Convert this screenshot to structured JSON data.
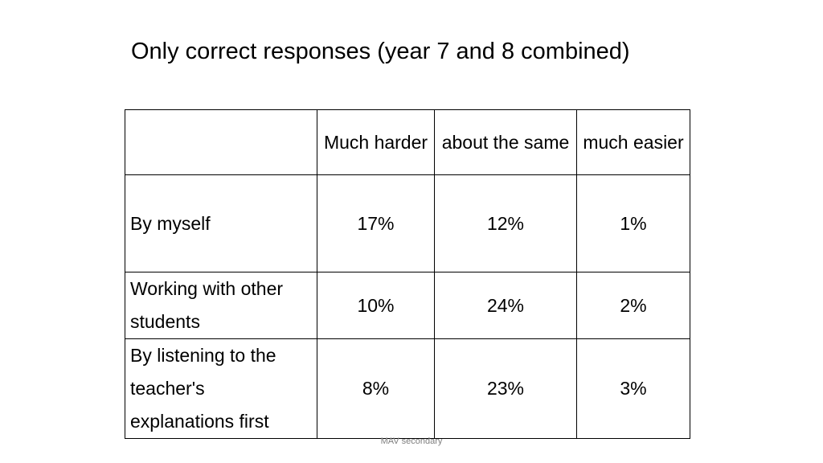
{
  "title": "Only correct responses (year 7 and 8 combined)",
  "table": {
    "headers": [
      "",
      "Much harder",
      "about the same",
      "much easier"
    ],
    "rows": [
      {
        "label": "By myself",
        "values": [
          "17%",
          "12%",
          "1%"
        ]
      },
      {
        "label": "Working with other students",
        "values": [
          "10%",
          "24%",
          "2%"
        ]
      },
      {
        "label": "By listening to the teacher's explanations first",
        "values": [
          "8%",
          "23%",
          "3%"
        ]
      }
    ]
  },
  "footer": "MAV secondary"
}
